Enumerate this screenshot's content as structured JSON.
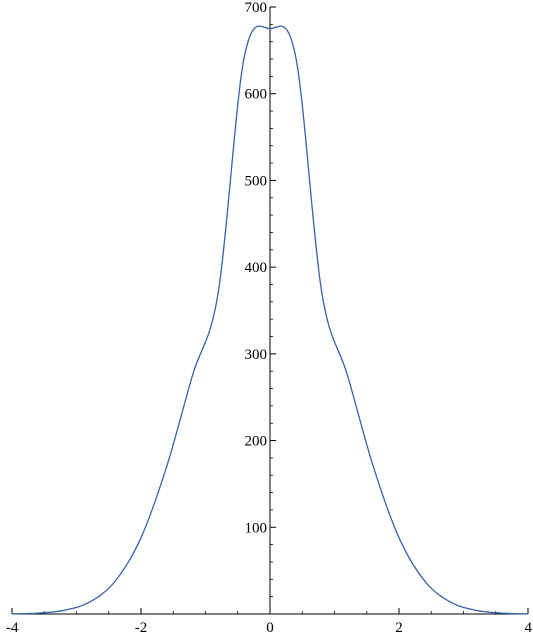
{
  "chart_data": {
    "type": "line",
    "title": "",
    "xlabel": "",
    "ylabel": "",
    "xlim": [
      -4,
      4
    ],
    "ylim": [
      0,
      700
    ],
    "x_ticks": [
      -4,
      -2,
      0,
      2,
      4
    ],
    "y_ticks": [
      100,
      200,
      300,
      400,
      500,
      600,
      700
    ],
    "x_tick_labels": [
      "-4",
      "-2",
      "0",
      "2",
      "4"
    ],
    "y_tick_labels": [
      "100",
      "200",
      "300",
      "400",
      "500",
      "600",
      "700"
    ],
    "grid": false,
    "legend": "none",
    "series": [
      {
        "color": "#3a62a8",
        "x": [
          -4.0,
          -3.6,
          -3.2,
          -2.8,
          -2.4,
          -2.0,
          -1.6,
          -1.2,
          -0.8,
          -0.4,
          0.0,
          0.4,
          0.8,
          1.2,
          1.6,
          2.0,
          2.4,
          2.8,
          3.2,
          3.6,
          4.0
        ],
        "y": [
          0.2,
          1.0,
          4.1,
          13.6,
          37.9,
          88.0,
          170.4,
          275.6,
          372.1,
          642.0,
          675.0,
          642.0,
          372.1,
          275.6,
          170.4,
          88.0,
          37.9,
          13.6,
          4.1,
          1.0,
          0.2
        ]
      }
    ]
  }
}
